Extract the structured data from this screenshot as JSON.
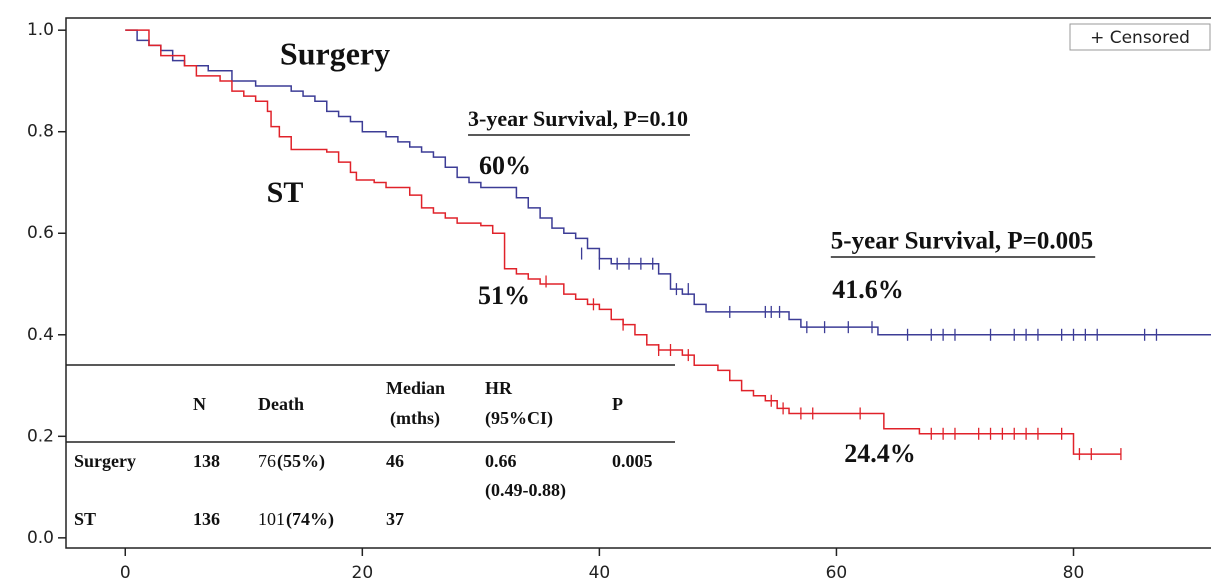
{
  "chart_data": {
    "type": "step",
    "xlim": [
      -5,
      91.6
    ],
    "ylim": [
      -0.02,
      1.024
    ],
    "xticks": [
      0,
      20,
      40,
      60,
      80
    ],
    "yticks": [
      {
        "value": 0,
        "label": "0.0"
      },
      0.2,
      0.4,
      0.6,
      0.8,
      {
        "value": 1,
        "label": "1.0"
      }
    ],
    "legend": {
      "text": "+ Censored",
      "position": "upper right"
    },
    "series": [
      {
        "name": "Surgery",
        "color": "#3c3c96",
        "x": [
          0,
          1,
          2,
          3,
          4,
          5,
          7,
          9,
          11,
          14,
          15,
          16,
          17,
          18,
          19,
          20,
          22,
          23,
          24,
          25,
          26,
          27,
          28,
          29,
          30,
          33,
          34,
          35,
          36,
          37,
          38,
          39,
          40,
          41,
          45,
          46,
          47,
          48,
          49,
          56,
          57,
          63.5,
          91.6
        ],
        "values": [
          1.0,
          0.98,
          0.97,
          0.96,
          0.94,
          0.93,
          0.92,
          0.9,
          0.89,
          0.88,
          0.87,
          0.86,
          0.84,
          0.83,
          0.82,
          0.8,
          0.79,
          0.78,
          0.77,
          0.76,
          0.75,
          0.73,
          0.71,
          0.7,
          0.69,
          0.67,
          0.65,
          0.63,
          0.61,
          0.6,
          0.59,
          0.57,
          0.55,
          0.54,
          0.52,
          0.49,
          0.48,
          0.46,
          0.445,
          0.43,
          0.415,
          0.4,
          0.4
        ],
        "censored_x": [
          38.5,
          40,
          41.5,
          42.5,
          43.5,
          44.5,
          46.5,
          47.5,
          51,
          54,
          54.5,
          55.2,
          57.5,
          59,
          61,
          63,
          66,
          68,
          69,
          70,
          73,
          75,
          76,
          77,
          79,
          80,
          81,
          82,
          86,
          87
        ],
        "censored_y": [
          0.56,
          0.54,
          0.54,
          0.54,
          0.54,
          0.54,
          0.49,
          0.49,
          0.445,
          0.445,
          0.445,
          0.445,
          0.415,
          0.415,
          0.415,
          0.415,
          0.4,
          0.4,
          0.4,
          0.4,
          0.4,
          0.4,
          0.4,
          0.4,
          0.4,
          0.4,
          0.4,
          0.4,
          0.4,
          0.4
        ]
      },
      {
        "name": "ST",
        "color": "#e0222a",
        "x": [
          0,
          2,
          3,
          5,
          6,
          8,
          9,
          10,
          11,
          12,
          12.3,
          13,
          14,
          17,
          18,
          19,
          19.5,
          21,
          22,
          24,
          25,
          26,
          27,
          28,
          30,
          31,
          32,
          33,
          34,
          35,
          37,
          38,
          39,
          40,
          41,
          42,
          43,
          44,
          45,
          47,
          48,
          50,
          51,
          52,
          53,
          54,
          55,
          56,
          64,
          67,
          80,
          84
        ],
        "values": [
          1.0,
          0.97,
          0.95,
          0.93,
          0.91,
          0.9,
          0.88,
          0.87,
          0.86,
          0.84,
          0.81,
          0.79,
          0.765,
          0.76,
          0.74,
          0.72,
          0.705,
          0.7,
          0.69,
          0.675,
          0.65,
          0.64,
          0.63,
          0.62,
          0.615,
          0.6,
          0.53,
          0.52,
          0.51,
          0.5,
          0.48,
          0.47,
          0.46,
          0.45,
          0.43,
          0.42,
          0.4,
          0.38,
          0.37,
          0.36,
          0.34,
          0.33,
          0.31,
          0.29,
          0.28,
          0.27,
          0.255,
          0.245,
          0.215,
          0.205,
          0.165,
          0.165
        ],
        "censored_x": [
          35.5,
          39.5,
          42,
          45,
          46,
          47.5,
          54.5,
          55.5,
          57,
          58,
          62,
          68,
          69,
          70,
          72,
          73,
          74,
          75,
          76,
          77,
          79,
          80.5,
          81.5,
          84
        ],
        "censored_y": [
          0.505,
          0.46,
          0.42,
          0.37,
          0.37,
          0.36,
          0.27,
          0.255,
          0.245,
          0.245,
          0.245,
          0.205,
          0.205,
          0.205,
          0.205,
          0.205,
          0.205,
          0.205,
          0.205,
          0.205,
          0.205,
          0.165,
          0.165,
          0.165
        ]
      }
    ],
    "annotations": [
      {
        "text": "Surgery",
        "underline": false
      },
      {
        "text": "ST",
        "underline": false
      },
      {
        "text": "3-year Survival, P=0.10",
        "underline": true
      },
      {
        "text": "60%",
        "underline": false
      },
      {
        "text": "51%",
        "underline": false
      },
      {
        "text": "5-year Survival, P=0.005",
        "underline": true
      },
      {
        "text": "41.6%",
        "underline": false
      },
      {
        "text": "24.4%",
        "underline": false
      }
    ],
    "table": {
      "header": [
        [],
        [
          "N"
        ],
        [
          "Death"
        ],
        [
          "Median",
          "(mths)"
        ],
        [
          "HR",
          "(95%CI)"
        ],
        [
          "P"
        ]
      ],
      "rows": [
        [
          [
            "Surgery"
          ],
          [
            "138"
          ],
          [
            "76",
            "(55%)"
          ],
          [
            "46"
          ],
          [
            "0.66",
            "(0.49-0.88)"
          ],
          [
            "0.005"
          ]
        ],
        [
          [
            "ST"
          ],
          [
            "136"
          ],
          [
            "101",
            "(74%)"
          ],
          [
            "37"
          ],
          [],
          []
        ]
      ]
    }
  }
}
